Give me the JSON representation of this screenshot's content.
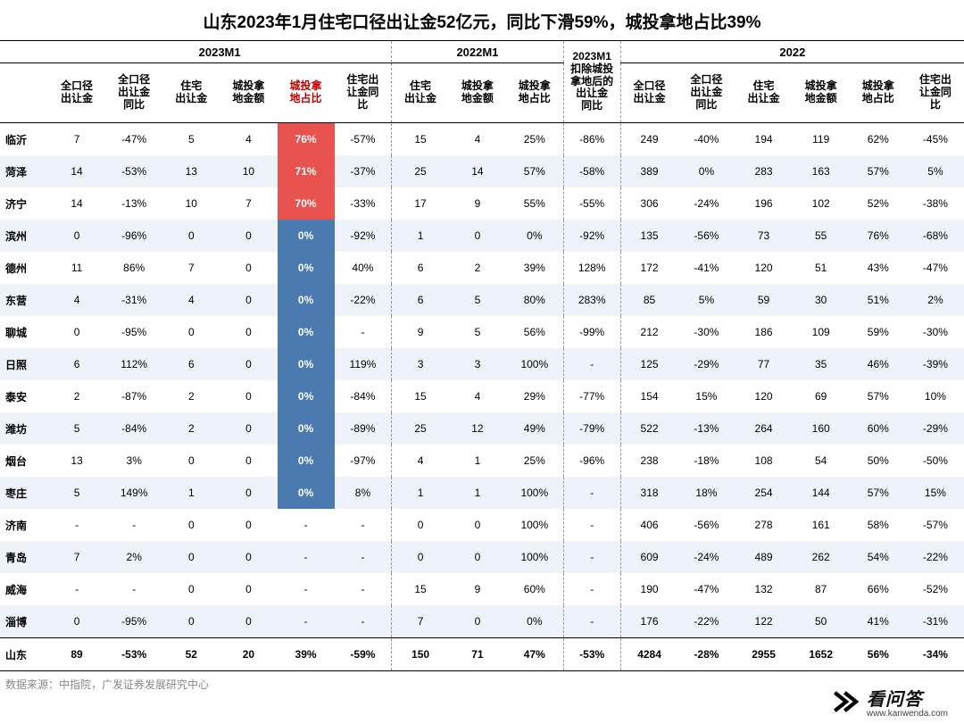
{
  "title": "山东2023年1月住宅口径出让金52亿元，同比下滑59%，城投拿地占比39%",
  "source": "数据来源：中指院，广发证券发展研究中心",
  "watermark": {
    "brand": "看问答",
    "url": "www.kanwenda.com"
  },
  "periods": [
    {
      "label": "2023M1",
      "span": 6
    },
    {
      "label": "2022M1",
      "span": 3
    },
    {
      "label": "2023M1\n扣除城投\n拿地后的\n出让金\n同比",
      "span": 1
    },
    {
      "label": "2022",
      "span": 6
    }
  ],
  "columns": [
    "全口径\n出让金",
    "全口径\n出让金\n同比",
    "住宅\n出让金",
    "城投拿\n地金额",
    "城投拿\n地占比",
    "住宅出\n让金同\n比",
    "住宅\n出让金",
    "城投拿\n地金额",
    "城投拿\n地占比",
    "",
    "全口径\n出让金",
    "全口径\n出让金\n同比",
    "住宅\n出让金",
    "城投拿\n地金额",
    "城投拿\n地占比",
    "住宅出\n让金同\n比"
  ],
  "highlight_col_index": 4,
  "highlight_header_class": "red-text",
  "colors": {
    "hl_red": "#e8524f",
    "hl_blue": "#4a7ab0",
    "alt_row": "#eef3f9"
  },
  "rows": [
    {
      "name": "临沂",
      "cells": [
        "7",
        "-47%",
        "5",
        "4",
        "76%",
        "-57%",
        "15",
        "4",
        "25%",
        "-86%",
        "249",
        "-40%",
        "194",
        "119",
        "62%",
        "-45%"
      ],
      "hl": "red"
    },
    {
      "name": "菏泽",
      "cells": [
        "14",
        "-53%",
        "13",
        "10",
        "71%",
        "-37%",
        "25",
        "14",
        "57%",
        "-58%",
        "389",
        "0%",
        "283",
        "163",
        "57%",
        "5%"
      ],
      "hl": "red"
    },
    {
      "name": "济宁",
      "cells": [
        "14",
        "-13%",
        "10",
        "7",
        "70%",
        "-33%",
        "17",
        "9",
        "55%",
        "-55%",
        "306",
        "-24%",
        "196",
        "102",
        "52%",
        "-38%"
      ],
      "hl": "red"
    },
    {
      "name": "滨州",
      "cells": [
        "0",
        "-96%",
        "0",
        "0",
        "0%",
        "-92%",
        "1",
        "0",
        "0%",
        "-92%",
        "135",
        "-56%",
        "73",
        "55",
        "76%",
        "-68%"
      ],
      "hl": "blue"
    },
    {
      "name": "德州",
      "cells": [
        "11",
        "86%",
        "7",
        "0",
        "0%",
        "40%",
        "6",
        "2",
        "39%",
        "128%",
        "172",
        "-41%",
        "120",
        "51",
        "43%",
        "-47%"
      ],
      "hl": "blue"
    },
    {
      "name": "东营",
      "cells": [
        "4",
        "-31%",
        "4",
        "0",
        "0%",
        "-22%",
        "6",
        "5",
        "80%",
        "283%",
        "85",
        "5%",
        "59",
        "30",
        "51%",
        "2%"
      ],
      "hl": "blue"
    },
    {
      "name": "聊城",
      "cells": [
        "0",
        "-95%",
        "0",
        "0",
        "0%",
        "-",
        "9",
        "5",
        "56%",
        "-99%",
        "212",
        "-30%",
        "186",
        "109",
        "59%",
        "-30%"
      ],
      "hl": "blue"
    },
    {
      "name": "日照",
      "cells": [
        "6",
        "112%",
        "6",
        "0",
        "0%",
        "119%",
        "3",
        "3",
        "100%",
        "-",
        "125",
        "-29%",
        "77",
        "35",
        "46%",
        "-39%"
      ],
      "hl": "blue"
    },
    {
      "name": "泰安",
      "cells": [
        "2",
        "-87%",
        "2",
        "0",
        "0%",
        "-84%",
        "15",
        "4",
        "29%",
        "-77%",
        "154",
        "15%",
        "120",
        "69",
        "57%",
        "10%"
      ],
      "hl": "blue"
    },
    {
      "name": "潍坊",
      "cells": [
        "5",
        "-84%",
        "2",
        "0",
        "0%",
        "-89%",
        "25",
        "12",
        "49%",
        "-79%",
        "522",
        "-13%",
        "264",
        "160",
        "60%",
        "-29%"
      ],
      "hl": "blue"
    },
    {
      "name": "烟台",
      "cells": [
        "13",
        "3%",
        "0",
        "0",
        "0%",
        "-97%",
        "4",
        "1",
        "25%",
        "-96%",
        "238",
        "-18%",
        "108",
        "54",
        "50%",
        "-50%"
      ],
      "hl": "blue"
    },
    {
      "name": "枣庄",
      "cells": [
        "5",
        "149%",
        "1",
        "0",
        "0%",
        "8%",
        "1",
        "1",
        "100%",
        "-",
        "318",
        "18%",
        "254",
        "144",
        "57%",
        "15%"
      ],
      "hl": "blue"
    },
    {
      "name": "济南",
      "cells": [
        "-",
        "-",
        "0",
        "0",
        "-",
        "-",
        "0",
        "0",
        "100%",
        "-",
        "406",
        "-56%",
        "278",
        "161",
        "58%",
        "-57%"
      ],
      "hl": null
    },
    {
      "name": "青岛",
      "cells": [
        "7",
        "2%",
        "0",
        "0",
        "-",
        "-",
        "0",
        "0",
        "100%",
        "-",
        "609",
        "-24%",
        "489",
        "262",
        "54%",
        "-22%"
      ],
      "hl": null
    },
    {
      "name": "威海",
      "cells": [
        "-",
        "-",
        "0",
        "0",
        "-",
        "-",
        "15",
        "9",
        "60%",
        "-",
        "190",
        "-47%",
        "132",
        "87",
        "66%",
        "-52%"
      ],
      "hl": null
    },
    {
      "name": "淄博",
      "cells": [
        "0",
        "-95%",
        "0",
        "0",
        "-",
        "-",
        "7",
        "0",
        "0%",
        "-",
        "176",
        "-22%",
        "122",
        "50",
        "41%",
        "-31%"
      ],
      "hl": null
    }
  ],
  "total": {
    "name": "山东",
    "cells": [
      "89",
      "-53%",
      "52",
      "20",
      "39%",
      "-59%",
      "150",
      "71",
      "47%",
      "-53%",
      "4284",
      "-28%",
      "2955",
      "1652",
      "56%",
      "-34%"
    ]
  }
}
